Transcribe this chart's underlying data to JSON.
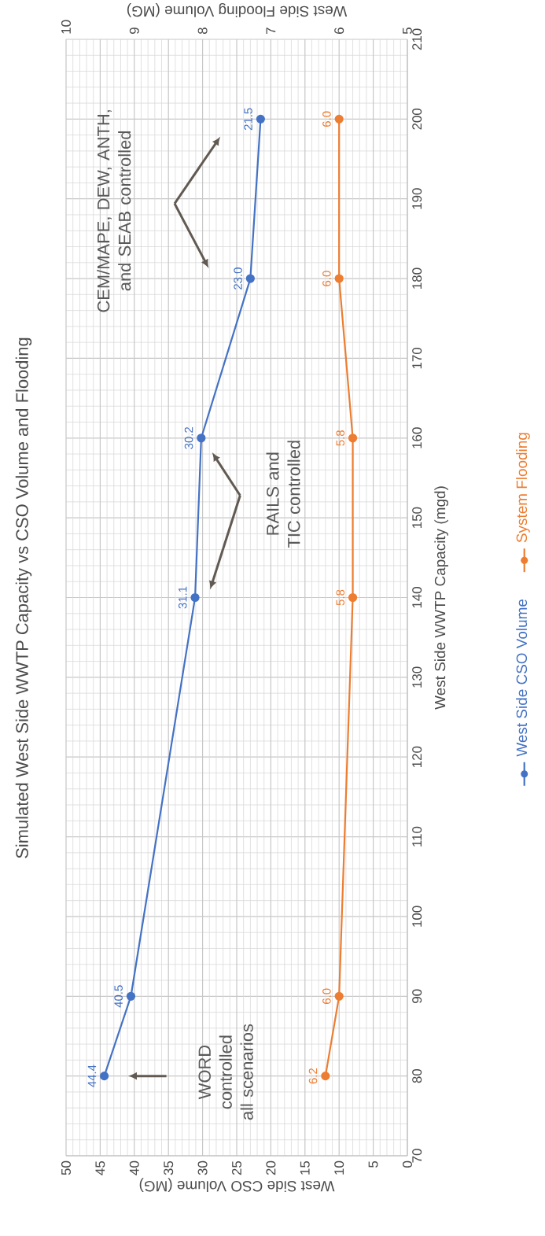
{
  "chart_data": {
    "type": "line",
    "title": "Simulated West Side WWTP Capacity vs CSO Volume and Flooding",
    "xlabel": "West Side CSO Volume (MG)",
    "x2label": "West Side Flooding Volume (MG)",
    "ylabel": "West Side WWTP Capacity (mgd)",
    "series": [
      {
        "name": "West Side CSO Volume",
        "color": "#4472c4",
        "x": [
          44.4,
          40.5,
          31.1,
          30.2,
          23.0,
          21.5
        ],
        "values": [
          80,
          90,
          140,
          160,
          180,
          200
        ]
      },
      {
        "name": "System Flooding",
        "color": "#ed7d31",
        "x": [
          6.2,
          6.0,
          5.8,
          5.8,
          6.0,
          6.0
        ],
        "values": [
          80,
          90,
          140,
          160,
          180,
          200
        ],
        "axis": "x2"
      }
    ],
    "xlim": [
      50,
      0
    ],
    "xticks": [
      50,
      45,
      40,
      35,
      30,
      25,
      20,
      15,
      10,
      5,
      0
    ],
    "x2lim": [
      10,
      5
    ],
    "x2ticks": [
      10,
      9,
      8,
      7,
      6,
      5
    ],
    "ylim": [
      70,
      210
    ],
    "yticks": [
      70,
      80,
      90,
      100,
      110,
      120,
      130,
      140,
      150,
      160,
      170,
      180,
      190,
      200,
      210
    ],
    "annotations": [
      "WORD controlled all scenarios",
      "RAILS and TIC controlled",
      "CEM/MAPE, DEW, ANTH, and SEAB controlled",
      {
        "text": "44.4",
        "x": 44.4,
        "y": 80
      },
      {
        "text": "40.5",
        "x": 40.5,
        "y": 90
      },
      {
        "text": "31.1",
        "x": 31.1,
        "y": 140
      },
      {
        "text": "30.2",
        "x": 30.2,
        "y": 160
      },
      {
        "text": "23.0",
        "x": 23.0,
        "y": 180
      },
      {
        "text": "21.5",
        "x": 21.5,
        "y": 200
      },
      "6.2",
      "6.0",
      "5.8",
      "5.8",
      "6.0",
      "6.0"
    ],
    "grid": true,
    "legend": "right",
    "marker": "circle",
    "line_style": "solid"
  }
}
